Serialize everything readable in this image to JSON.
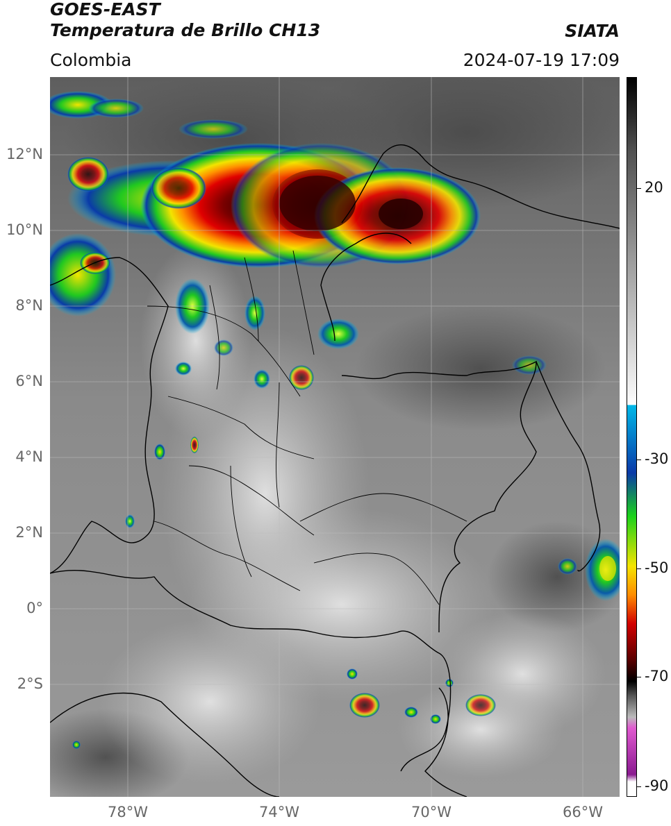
{
  "header": {
    "satellite": "GOES-EAST",
    "product": "Temperatura de Brillo CH13",
    "region": "Colombia",
    "organization": "SIATA",
    "datetime": "2024-07-19 17:09"
  },
  "map": {
    "lon_range": [
      -80,
      -65
    ],
    "lat_range": [
      -5,
      14
    ],
    "lat_ticks": [
      "12°N",
      "10°N",
      "8°N",
      "6°N",
      "4°N",
      "2°N",
      "0°",
      "2°S"
    ],
    "lon_ticks": [
      "78°W",
      "74°W",
      "70°W",
      "66°W"
    ]
  },
  "colorbar": {
    "labels": [
      "20",
      "-30",
      "-50",
      "-70",
      "-90"
    ],
    "colors": {
      "warm": "#d8d8d8",
      "cyan": "#00b8e8",
      "blue": "#0a3aa8",
      "green": "#1bd21b",
      "yellow": "#f5e400",
      "orange": "#ff8c00",
      "red": "#d20000",
      "dark-red": "#5a0000",
      "black": "#000000",
      "magenta": "#e05ad0",
      "purple": "#8a1a90"
    }
  }
}
